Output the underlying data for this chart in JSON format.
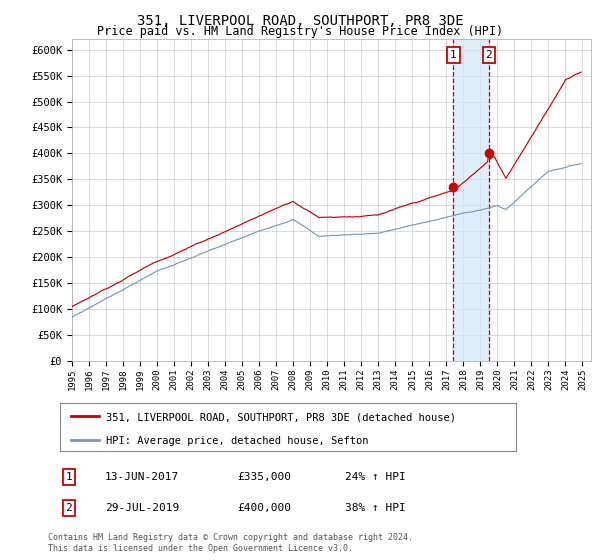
{
  "title1": "351, LIVERPOOL ROAD, SOUTHPORT, PR8 3DE",
  "title2": "Price paid vs. HM Land Registry's House Price Index (HPI)",
  "ylabel_ticks": [
    "£0",
    "£50K",
    "£100K",
    "£150K",
    "£200K",
    "£250K",
    "£300K",
    "£350K",
    "£400K",
    "£450K",
    "£500K",
    "£550K",
    "£600K"
  ],
  "ytick_vals": [
    0,
    50000,
    100000,
    150000,
    200000,
    250000,
    300000,
    350000,
    400000,
    450000,
    500000,
    550000,
    600000
  ],
  "ylim": [
    0,
    620000
  ],
  "sale1_date": "13-JUN-2017",
  "sale1_price": 335000,
  "sale1_pct": "24%",
  "sale2_date": "29-JUL-2019",
  "sale2_price": 400000,
  "sale2_pct": "38%",
  "legend1": "351, LIVERPOOL ROAD, SOUTHPORT, PR8 3DE (detached house)",
  "legend2": "HPI: Average price, detached house, Sefton",
  "footnote1": "Contains HM Land Registry data © Crown copyright and database right 2024.",
  "footnote2": "This data is licensed under the Open Government Licence v3.0.",
  "red_color": "#cc0000",
  "blue_color": "#7799bb",
  "bg_color": "#ffffff",
  "grid_color": "#cccccc",
  "sale1_year": 2017.458,
  "sale2_year": 2019.583
}
